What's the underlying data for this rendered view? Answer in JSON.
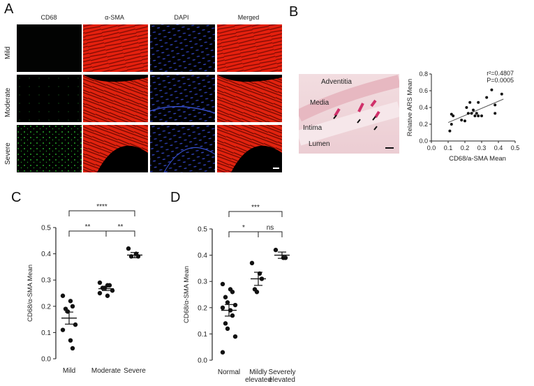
{
  "panels": {
    "A": {
      "letter": "A",
      "columns": [
        "CD68",
        "α-SMA",
        "DAPI",
        "Merged"
      ],
      "rows": [
        "Mild",
        "Moderate",
        "Severe"
      ]
    },
    "B": {
      "letter": "B",
      "histology_labels": [
        "Adventitia",
        "Media",
        "Intima",
        "Lumen"
      ]
    },
    "C": {
      "letter": "C"
    },
    "D": {
      "letter": "D"
    }
  },
  "chart_data": [
    {
      "id": "B",
      "type": "scatter",
      "xlabel": "CD68/a-SMA Mean",
      "ylabel": "Relative ARS Mean",
      "xlim": [
        0,
        0.5
      ],
      "ylim": [
        0,
        0.8
      ],
      "xticks": [
        "0.0",
        "0.1",
        "0.2",
        "0.3",
        "0.4",
        "0.5"
      ],
      "yticks": [
        "0.0",
        "0.2",
        "0.4",
        "0.6",
        "0.8"
      ],
      "annotations": [
        "r²=0.4807",
        "P=0.0005"
      ],
      "trendline": [
        [
          0.1,
          0.22
        ],
        [
          0.43,
          0.5
        ]
      ],
      "points": [
        [
          0.11,
          0.12
        ],
        [
          0.12,
          0.32
        ],
        [
          0.12,
          0.2
        ],
        [
          0.13,
          0.3
        ],
        [
          0.18,
          0.25
        ],
        [
          0.2,
          0.24
        ],
        [
          0.21,
          0.4
        ],
        [
          0.22,
          0.33
        ],
        [
          0.23,
          0.46
        ],
        [
          0.24,
          0.33
        ],
        [
          0.25,
          0.37
        ],
        [
          0.26,
          0.3
        ],
        [
          0.27,
          0.33
        ],
        [
          0.28,
          0.46
        ],
        [
          0.28,
          0.3
        ],
        [
          0.3,
          0.3
        ],
        [
          0.33,
          0.52
        ],
        [
          0.36,
          0.61
        ],
        [
          0.38,
          0.43
        ],
        [
          0.38,
          0.33
        ],
        [
          0.42,
          0.56
        ]
      ]
    },
    {
      "id": "C",
      "type": "scatter",
      "ylabel": "CD68/α-SMA Mean",
      "categories": [
        "Mild",
        "Moderate",
        "Severe"
      ],
      "ylim": [
        0,
        0.5
      ],
      "yticks": [
        "0.0",
        "0.1",
        "0.2",
        "0.3",
        "0.4",
        "0.5"
      ],
      "points": [
        [
          0.24,
          0.22,
          0.2,
          0.19,
          0.18,
          0.13,
          0.11,
          0.07,
          0.04
        ],
        [
          0.29,
          0.28,
          0.28,
          0.27,
          0.27,
          0.26,
          0.25,
          0.24
        ],
        [
          0.42,
          0.4,
          0.39,
          0.39
        ]
      ],
      "means": [
        0.155,
        0.267,
        0.395
      ],
      "sems": [
        0.023,
        0.007,
        0.01
      ],
      "significance": [
        {
          "from": 0,
          "to": 1,
          "label": "**"
        },
        {
          "from": 1,
          "to": 2,
          "label": "**"
        },
        {
          "from": 0,
          "to": 2,
          "label": "****"
        }
      ]
    },
    {
      "id": "D",
      "type": "scatter",
      "ylabel": "CD68/α-SMA Mean",
      "categories": [
        "Normal",
        "Mildly\nelevated",
        "Severely\nelevated"
      ],
      "ylim": [
        0,
        0.5
      ],
      "yticks": [
        "0.0",
        "0.1",
        "0.2",
        "0.3",
        "0.4",
        "0.5"
      ],
      "points": [
        [
          0.29,
          0.27,
          0.26,
          0.24,
          0.22,
          0.21,
          0.2,
          0.19,
          0.17,
          0.14,
          0.12,
          0.09,
          0.03
        ],
        [
          0.37,
          0.33,
          0.31,
          0.27,
          0.26
        ],
        [
          0.42,
          0.39,
          0.39
        ]
      ],
      "means": [
        0.19,
        0.31,
        0.4
      ],
      "sems": [
        0.022,
        0.025,
        0.012
      ],
      "significance": [
        {
          "from": 0,
          "to": 1,
          "label": "*"
        },
        {
          "from": 1,
          "to": 2,
          "label": "ns"
        },
        {
          "from": 0,
          "to": 2,
          "label": "***"
        }
      ]
    }
  ]
}
